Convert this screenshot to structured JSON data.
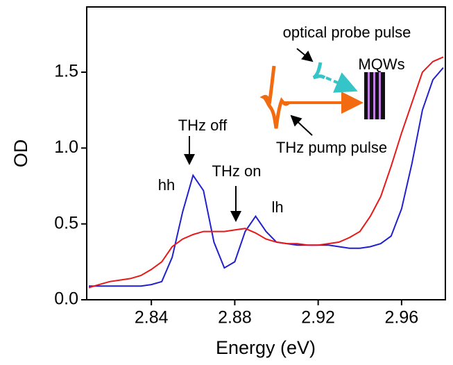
{
  "chart_data": {
    "type": "line",
    "x_label": "Energy (eV)",
    "y_label": "OD",
    "x": [
      2.81,
      2.815,
      2.82,
      2.825,
      2.83,
      2.835,
      2.84,
      2.845,
      2.85,
      2.855,
      2.86,
      2.865,
      2.87,
      2.875,
      2.88,
      2.885,
      2.89,
      2.895,
      2.9,
      2.905,
      2.91,
      2.915,
      2.92,
      2.925,
      2.93,
      2.935,
      2.94,
      2.945,
      2.95,
      2.955,
      2.96,
      2.965,
      2.97,
      2.975,
      2.98
    ],
    "series": [
      {
        "color": "#1f1fd0",
        "values": [
          0.09,
          0.09,
          0.09,
          0.09,
          0.09,
          0.09,
          0.1,
          0.12,
          0.28,
          0.58,
          0.82,
          0.72,
          0.38,
          0.21,
          0.25,
          0.45,
          0.55,
          0.45,
          0.38,
          0.37,
          0.36,
          0.36,
          0.36,
          0.36,
          0.35,
          0.34,
          0.34,
          0.35,
          0.37,
          0.42,
          0.6,
          0.9,
          1.25,
          1.45,
          1.53
        ]
      },
      {
        "color": "#e81818",
        "values": [
          0.08,
          0.1,
          0.12,
          0.13,
          0.14,
          0.16,
          0.2,
          0.25,
          0.35,
          0.4,
          0.43,
          0.45,
          0.45,
          0.45,
          0.46,
          0.47,
          0.44,
          0.4,
          0.38,
          0.37,
          0.37,
          0.36,
          0.36,
          0.37,
          0.38,
          0.41,
          0.45,
          0.55,
          0.68,
          0.88,
          1.1,
          1.3,
          1.5,
          1.57,
          1.6
        ]
      }
    ],
    "xlim": [
      2.809,
      2.981
    ],
    "xticks": [
      2.84,
      2.88,
      2.92,
      2.96
    ],
    "ylim": [
      0,
      1.93
    ],
    "yticks": [
      {
        "value": 0,
        "label": "0.0"
      },
      0.5,
      {
        "value": 1,
        "label": "1.0"
      },
      1.5
    ],
    "annotations": [
      "THz off",
      "THz on",
      "hh",
      "lh",
      "optical probe pulse",
      "MQWs",
      "THz pump pulse"
    ]
  }
}
